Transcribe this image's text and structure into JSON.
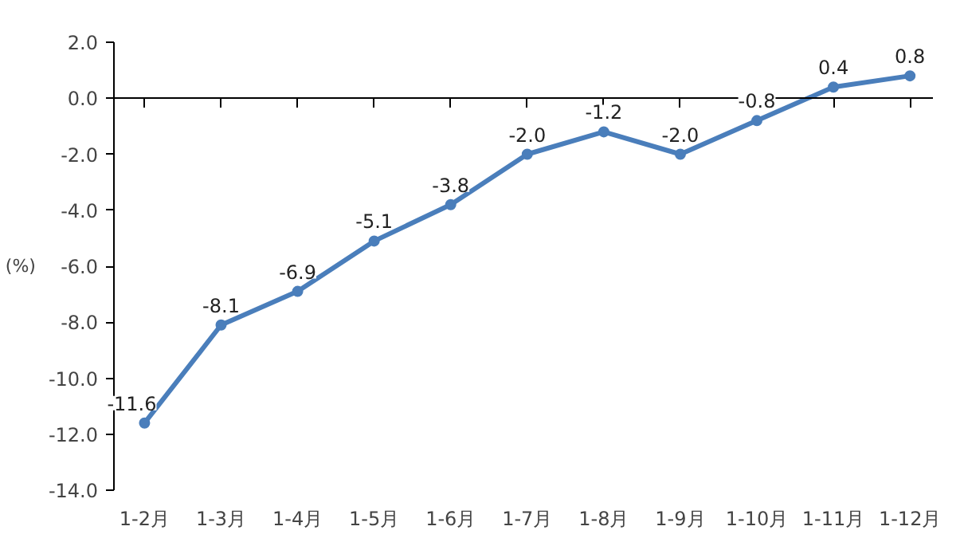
{
  "chart_data": {
    "type": "line",
    "ylabel": "(%)",
    "categories": [
      "1-2月",
      "1-3月",
      "1-4月",
      "1-5月",
      "1-6月",
      "1-7月",
      "1-8月",
      "1-9月",
      "1-10月",
      "1-11月",
      "1-12月"
    ],
    "series": [
      {
        "color": "#4a7ebb",
        "values": [
          -11.6,
          -8.1,
          -6.9,
          -5.1,
          -3.8,
          -2.0,
          -1.2,
          -2.0,
          -0.8,
          0.4,
          0.8
        ]
      }
    ],
    "ylim": [
      -14,
      2
    ],
    "yticks": [
      {
        "value": 2,
        "label": "2.0"
      },
      {
        "value": 0,
        "label": "0.0"
      },
      {
        "value": -2,
        "label": "-2.0"
      },
      {
        "value": -4,
        "label": "-4.0"
      },
      {
        "value": -6,
        "label": "-6.0"
      },
      {
        "value": -8,
        "label": "-8.0"
      },
      {
        "value": -10,
        "label": "-10.0"
      },
      {
        "value": -12,
        "label": "-12.0"
      },
      {
        "value": -14,
        "label": "-14.0"
      }
    ],
    "value_labels": [
      "-11.6",
      "-8.1",
      "-6.9",
      "-5.1",
      "-3.8",
      "-2.0",
      "-1.2",
      "-2.0",
      "-0.8",
      "0.4",
      "0.8"
    ],
    "marker": "circle",
    "line_style": "solid"
  }
}
